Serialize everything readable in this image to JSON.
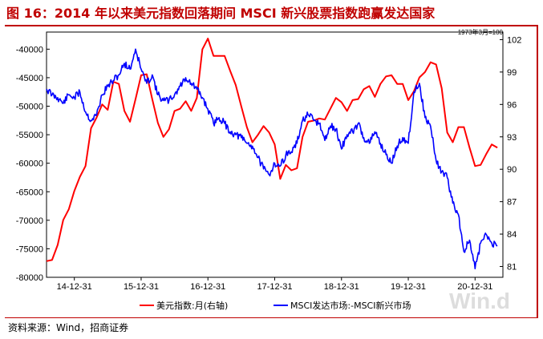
{
  "title": "图 16：2014 年以来美元指数回落期间 MSCI 新兴股票指数跑赢发达国家",
  "source": "资料来源：Wind，招商证券",
  "watermark": "Win.d",
  "colors": {
    "title": "#c00000",
    "usd": "#ff0000",
    "msci": "#0000ff"
  },
  "chart_data": {
    "type": "line",
    "note": "1973年3月=100",
    "x_tick_labels": [
      "14-12-31",
      "15-12-31",
      "16-12-31",
      "17-12-31",
      "18-12-31",
      "19-12-31",
      "20-12-31"
    ],
    "left_axis": {
      "ticks": [
        -40000,
        -45000,
        -50000,
        -55000,
        -60000,
        -65000,
        -70000,
        -75000,
        -80000
      ],
      "ylim": [
        -80000,
        -37000
      ]
    },
    "right_axis": {
      "ticks": [
        102,
        99,
        96,
        93,
        90,
        87,
        84,
        81
      ],
      "ylim": [
        80,
        102.7
      ]
    },
    "grid": false,
    "legend": "bottom-center",
    "series": [
      {
        "name": "美元指数:月(右轴)",
        "axis": "right",
        "x": [
          "2014-07",
          "2014-08",
          "2014-09",
          "2014-10",
          "2014-11",
          "2014-12",
          "2015-01",
          "2015-02",
          "2015-03",
          "2015-04",
          "2015-05",
          "2015-06",
          "2015-07",
          "2015-08",
          "2015-09",
          "2015-10",
          "2015-11",
          "2015-12",
          "2016-01",
          "2016-02",
          "2016-03",
          "2016-04",
          "2016-05",
          "2016-06",
          "2016-07",
          "2016-08",
          "2016-09",
          "2016-10",
          "2016-11",
          "2016-12",
          "2017-01",
          "2017-02",
          "2017-03",
          "2017-04",
          "2017-05",
          "2017-06",
          "2017-07",
          "2017-08",
          "2017-09",
          "2017-10",
          "2017-11",
          "2017-12",
          "2018-01",
          "2018-02",
          "2018-03",
          "2018-04",
          "2018-05",
          "2018-06",
          "2018-07",
          "2018-08",
          "2018-09",
          "2018-10",
          "2018-11",
          "2018-12",
          "2019-01",
          "2019-02",
          "2019-03",
          "2019-04",
          "2019-05",
          "2019-06",
          "2019-07",
          "2019-08",
          "2019-09",
          "2019-10",
          "2019-11",
          "2019-12",
          "2020-01",
          "2020-02",
          "2020-03",
          "2020-04",
          "2020-05",
          "2020-06",
          "2020-07",
          "2020-08",
          "2020-09",
          "2020-10",
          "2020-11",
          "2020-12",
          "2021-01",
          "2021-02",
          "2021-03",
          "2021-04"
        ],
        "values": [
          81.5,
          81.6,
          83.0,
          85.3,
          86.3,
          88.0,
          89.3,
          90.3,
          93.8,
          94.8,
          96.0,
          95.5,
          98.1,
          97.9,
          95.4,
          94.4,
          96.5,
          98.7,
          98.8,
          96.5,
          94.3,
          93.0,
          93.7,
          95.4,
          95.6,
          96.3,
          95.4,
          96.6,
          101.1,
          102.1,
          100.5,
          100.5,
          100.5,
          99.1,
          97.8,
          95.8,
          93.9,
          92.5,
          93.2,
          94.0,
          93.4,
          92.3,
          89.1,
          90.4,
          89.9,
          90.1,
          93.0,
          94.4,
          94.5,
          94.7,
          94.6,
          95.6,
          96.6,
          96.2,
          95.4,
          96.4,
          96.5,
          97.4,
          97.7,
          96.7,
          97.9,
          98.6,
          98.7,
          97.9,
          97.9,
          96.4,
          97.2,
          98.5,
          99.0,
          99.9,
          99.7,
          97.5,
          93.4,
          92.5,
          93.9,
          93.9,
          92.0,
          90.3,
          90.4,
          91.4,
          92.3,
          92.0
        ]
      },
      {
        "name": "MSCI发达市场:-MSCI新兴市场",
        "axis": "left",
        "x": [
          "2014-07",
          "2014-08",
          "2014-09",
          "2014-10",
          "2014-11",
          "2014-12",
          "2015-01",
          "2015-02",
          "2015-03",
          "2015-04",
          "2015-05",
          "2015-06",
          "2015-07",
          "2015-08",
          "2015-09",
          "2015-10",
          "2015-11",
          "2015-12",
          "2016-01",
          "2016-02",
          "2016-03",
          "2016-04",
          "2016-05",
          "2016-06",
          "2016-07",
          "2016-08",
          "2016-09",
          "2016-10",
          "2016-11",
          "2016-12",
          "2017-01",
          "2017-02",
          "2017-03",
          "2017-04",
          "2017-05",
          "2017-06",
          "2017-07",
          "2017-08",
          "2017-09",
          "2017-10",
          "2017-11",
          "2017-12",
          "2018-01",
          "2018-02",
          "2018-03",
          "2018-04",
          "2018-05",
          "2018-06",
          "2018-07",
          "2018-08",
          "2018-09",
          "2018-10",
          "2018-11",
          "2018-12",
          "2019-01",
          "2019-02",
          "2019-03",
          "2019-04",
          "2019-05",
          "2019-06",
          "2019-07",
          "2019-08",
          "2019-09",
          "2019-10",
          "2019-11",
          "2019-12",
          "2020-01",
          "2020-02",
          "2020-03",
          "2020-04",
          "2020-05",
          "2020-06",
          "2020-07",
          "2020-08",
          "2020-09",
          "2020-10",
          "2020-11",
          "2020-12",
          "2021-01",
          "2021-02",
          "2021-03",
          "2021-04"
        ],
        "values": [
          -47000,
          -48000,
          -48500,
          -49500,
          -48000,
          -48500,
          -47500,
          -51000,
          -52500,
          -51500,
          -48000,
          -46500,
          -45500,
          -44500,
          -42500,
          -43500,
          -40000,
          -43500,
          -46000,
          -44500,
          -48000,
          -49000,
          -49000,
          -48000,
          -46500,
          -45000,
          -46000,
          -47000,
          -48500,
          -50500,
          -53000,
          -52000,
          -53000,
          -54500,
          -55000,
          -55500,
          -56500,
          -57000,
          -59000,
          -61000,
          -62000,
          -60000,
          -60500,
          -58500,
          -58000,
          -56500,
          -52500,
          -51500,
          -52500,
          -53000,
          -56000,
          -53500,
          -54000,
          -57500,
          -55000,
          -54500,
          -53000,
          -55500,
          -56500,
          -54500,
          -56500,
          -58500,
          -60000,
          -57000,
          -55500,
          -56500,
          -47500,
          -46000,
          -52000,
          -53500,
          -59500,
          -61500,
          -62500,
          -67000,
          -69000,
          -75500,
          -73500,
          -78500,
          -74000,
          -72500,
          -74000,
          -74500
        ]
      }
    ]
  }
}
